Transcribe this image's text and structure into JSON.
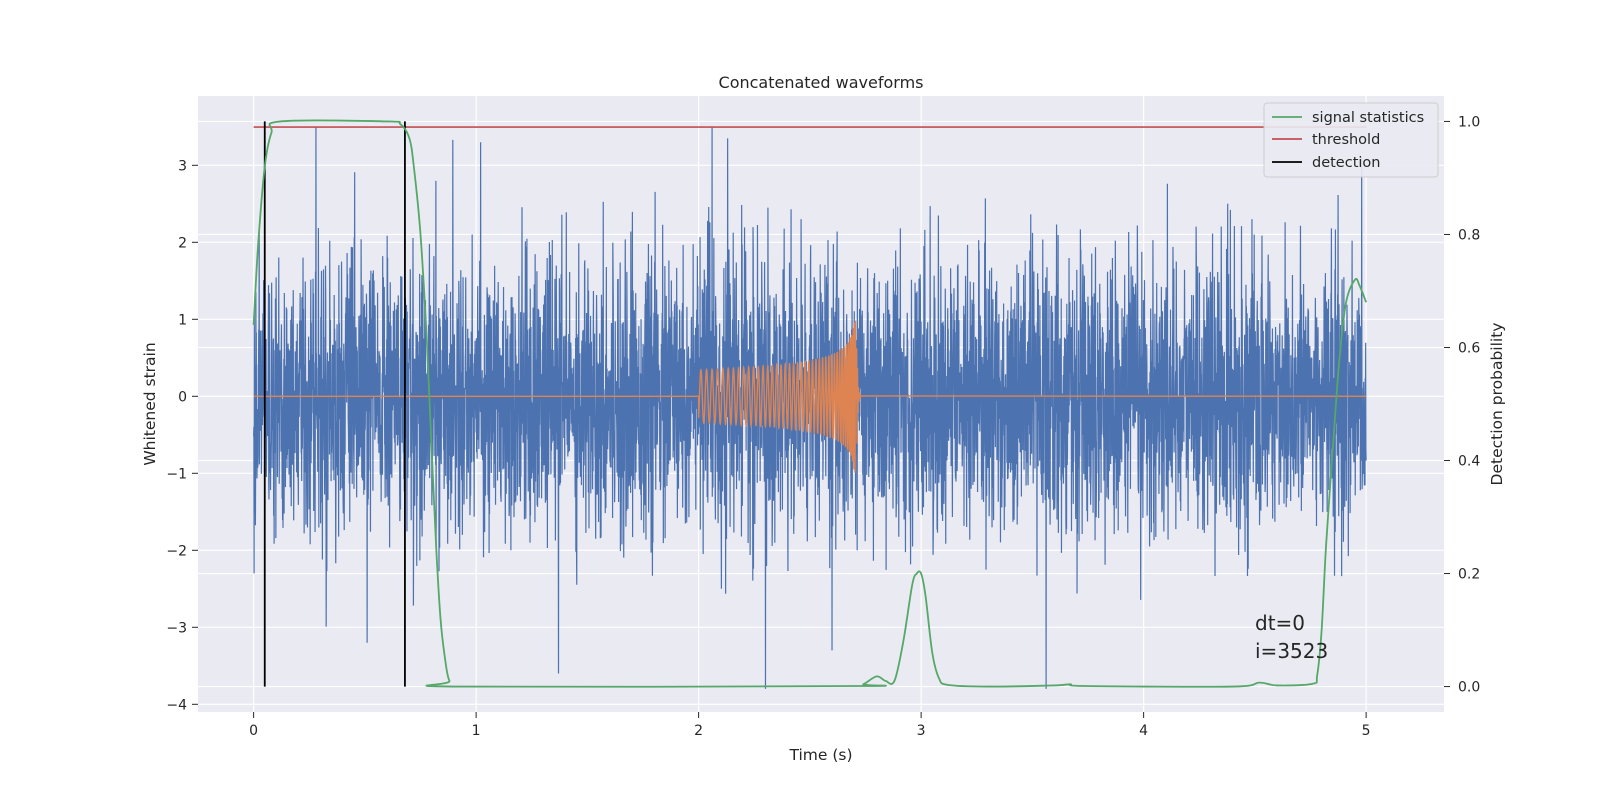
{
  "chart_data": {
    "type": "line",
    "title": "Concatenated waveforms",
    "xlabel": "Time (s)",
    "ylabel": "Whitened strain",
    "ylabel_right": "Detection probability",
    "xlim": [
      -0.25,
      5.35
    ],
    "ylim": [
      -4.1,
      3.9
    ],
    "ylim_right": [
      -0.045,
      1.045
    ],
    "x_ticks": [
      0,
      1,
      2,
      3,
      4,
      5
    ],
    "y_ticks": [
      -4,
      -3,
      -2,
      -1,
      0,
      1,
      2,
      3
    ],
    "y_ticks_right": [
      0.0,
      0.2,
      0.4,
      0.6,
      0.8,
      1.0
    ],
    "grid": true,
    "legend_position": "top-right",
    "series": [
      {
        "name": "strain",
        "axis": "left",
        "color": "#4c72b0",
        "description": "whitened noise, approx. gaussian, std ~0.9, spikes up to about +3.5 and down to -3.8",
        "spikes": [
          {
            "x": 0.28,
            "y": 3.5
          },
          {
            "x": 1.02,
            "y": 3.3
          },
          {
            "x": 2.06,
            "y": 3.5
          },
          {
            "x": 2.13,
            "y": 3.35
          },
          {
            "x": 2.3,
            "y": -3.8
          },
          {
            "x": 1.37,
            "y": -3.6
          },
          {
            "x": 0.51,
            "y": -3.2
          },
          {
            "x": 2.6,
            "y": -3.3
          },
          {
            "x": 4.98,
            "y": 3.1
          }
        ]
      },
      {
        "name": "injected signal",
        "axis": "left",
        "color": "#dd8452",
        "x_start": 2.0,
        "x_merger": 2.71,
        "amplitude_peak": 1.0,
        "shape": "chirp"
      },
      {
        "name": "signal statistics",
        "axis": "right",
        "color": "#55a868",
        "x": [
          0.0,
          0.02,
          0.05,
          0.08,
          0.12,
          0.6,
          0.66,
          0.7,
          0.72,
          0.75,
          0.78,
          0.8,
          0.82,
          0.84,
          0.86,
          0.88,
          0.92,
          2.7,
          2.74,
          2.8,
          2.84,
          2.88,
          2.92,
          2.96,
          2.98,
          3.0,
          3.02,
          3.05,
          3.08,
          3.12,
          3.3,
          3.6,
          3.67,
          3.74,
          4.4,
          4.52,
          4.6,
          4.76,
          4.78,
          4.8,
          4.82,
          4.85,
          4.88,
          4.91,
          4.95,
          4.97,
          5.0
        ],
        "y": [
          0.64,
          0.78,
          0.92,
          0.98,
          1.0,
          1.0,
          0.995,
          0.97,
          0.92,
          0.8,
          0.6,
          0.42,
          0.25,
          0.12,
          0.05,
          0.01,
          0.0,
          0.001,
          0.004,
          0.018,
          0.01,
          0.01,
          0.08,
          0.18,
          0.2,
          0.2,
          0.16,
          0.06,
          0.015,
          0.003,
          0.0,
          0.002,
          0.004,
          0.001,
          0.0,
          0.007,
          0.002,
          0.005,
          0.02,
          0.1,
          0.25,
          0.42,
          0.58,
          0.68,
          0.72,
          0.71,
          0.68
        ]
      },
      {
        "name": "threshold",
        "axis": "right",
        "color": "#c44e52",
        "x": [
          0.0,
          5.0
        ],
        "y": [
          0.99,
          0.99
        ]
      },
      {
        "name": "detection",
        "axis": "right",
        "color": "#000000",
        "vlines": [
          0.05,
          0.68
        ],
        "ymin": 0.0,
        "ymax": 1.0
      }
    ],
    "annotations": [
      "dt=0",
      "i=3523"
    ]
  },
  "legend": [
    {
      "label": "signal statistics",
      "color": "#55a868"
    },
    {
      "label": "threshold",
      "color": "#c44e52"
    },
    {
      "label": "detection",
      "color": "#000000"
    }
  ],
  "annotation_text": {
    "dt": "dt=0",
    "i": "i=3523"
  },
  "colors": {
    "background": "#eaeaf2",
    "grid": "#ffffff"
  }
}
